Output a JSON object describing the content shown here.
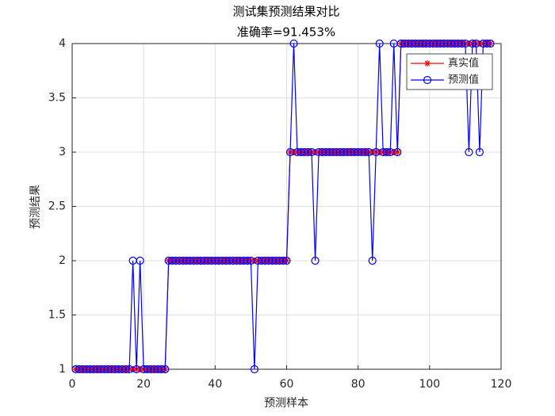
{
  "chart_data": {
    "type": "line",
    "title": "测试集预测结果对比",
    "subtitle": "准确率=91.453%",
    "x_label": "预测样本",
    "y_label": "预测结果",
    "x": [
      1,
      2,
      3,
      4,
      5,
      6,
      7,
      8,
      9,
      10,
      11,
      12,
      13,
      14,
      15,
      16,
      17,
      18,
      19,
      20,
      21,
      22,
      23,
      24,
      25,
      26,
      27,
      28,
      29,
      30,
      31,
      32,
      33,
      34,
      35,
      36,
      37,
      38,
      39,
      40,
      41,
      42,
      43,
      44,
      45,
      46,
      47,
      48,
      49,
      50,
      51,
      52,
      53,
      54,
      55,
      56,
      57,
      58,
      59,
      60,
      61,
      62,
      63,
      64,
      65,
      66,
      67,
      68,
      69,
      70,
      71,
      72,
      73,
      74,
      75,
      76,
      77,
      78,
      79,
      80,
      81,
      82,
      83,
      84,
      85,
      86,
      87,
      88,
      89,
      90,
      91,
      92,
      93,
      94,
      95,
      96,
      97,
      98,
      99,
      100,
      101,
      102,
      103,
      104,
      105,
      106,
      107,
      108,
      109,
      110,
      111,
      112,
      113,
      114,
      115,
      116,
      117
    ],
    "series": [
      {
        "name": "真实值",
        "color": "#ff0000",
        "marker": "star",
        "values": [
          1,
          1,
          1,
          1,
          1,
          1,
          1,
          1,
          1,
          1,
          1,
          1,
          1,
          1,
          1,
          1,
          1,
          1,
          1,
          1,
          1,
          1,
          1,
          1,
          1,
          1,
          2,
          2,
          2,
          2,
          2,
          2,
          2,
          2,
          2,
          2,
          2,
          2,
          2,
          2,
          2,
          2,
          2,
          2,
          2,
          2,
          2,
          2,
          2,
          2,
          2,
          2,
          2,
          2,
          2,
          2,
          2,
          2,
          2,
          2,
          3,
          3,
          3,
          3,
          3,
          3,
          3,
          3,
          3,
          3,
          3,
          3,
          3,
          3,
          3,
          3,
          3,
          3,
          3,
          3,
          3,
          3,
          3,
          3,
          3,
          3,
          3,
          3,
          3,
          3,
          3,
          4,
          4,
          4,
          4,
          4,
          4,
          4,
          4,
          4,
          4,
          4,
          4,
          4,
          4,
          4,
          4,
          4,
          4,
          4,
          4,
          4,
          4,
          4,
          4,
          4,
          4
        ]
      },
      {
        "name": "预测值",
        "color": "#0000ff",
        "marker": "circle",
        "values": [
          1,
          1,
          1,
          1,
          1,
          1,
          1,
          1,
          1,
          1,
          1,
          1,
          1,
          1,
          1,
          1,
          2,
          1,
          2,
          1,
          1,
          1,
          1,
          1,
          1,
          1,
          2,
          2,
          2,
          2,
          2,
          2,
          2,
          2,
          2,
          2,
          2,
          2,
          2,
          2,
          2,
          2,
          2,
          2,
          2,
          2,
          2,
          2,
          2,
          2,
          1,
          2,
          2,
          2,
          2,
          2,
          2,
          2,
          2,
          2,
          3,
          4,
          3,
          3,
          3,
          3,
          3,
          2,
          3,
          3,
          3,
          3,
          3,
          3,
          3,
          3,
          3,
          3,
          3,
          3,
          3,
          3,
          3,
          2,
          3,
          4,
          3,
          3,
          3,
          4,
          3,
          4,
          4,
          4,
          4,
          4,
          4,
          4,
          4,
          4,
          4,
          4,
          4,
          4,
          4,
          4,
          4,
          4,
          4,
          4,
          3,
          4,
          4,
          3,
          4,
          4,
          4
        ]
      }
    ],
    "xlim": [
      0,
      120
    ],
    "xticks": [
      0,
      20,
      40,
      60,
      80,
      100,
      120
    ],
    "ylim": [
      1,
      4
    ],
    "yticks": [
      1,
      1.5,
      2,
      2.5,
      3,
      3.5,
      4
    ],
    "grid": true,
    "legend": "northeast"
  }
}
